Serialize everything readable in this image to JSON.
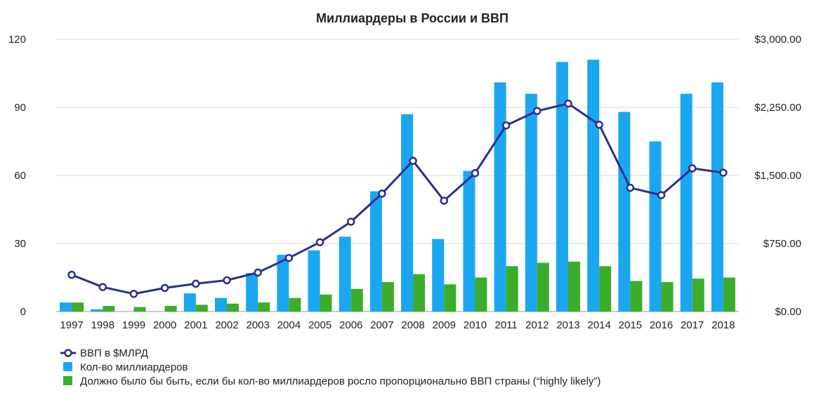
{
  "chart_data": {
    "type": "bar",
    "title": "Миллиардеры в России и ВВП",
    "categories": [
      "1997",
      "1998",
      "1999",
      "2000",
      "2001",
      "2002",
      "2003",
      "2004",
      "2005",
      "2006",
      "2007",
      "2008",
      "2009",
      "2010",
      "2011",
      "2012",
      "2013",
      "2014",
      "2015",
      "2016",
      "2017",
      "2018"
    ],
    "series": [
      {
        "name": "Кол-во миллиардеров",
        "kind": "bar",
        "axis": "left",
        "color": "#1aa7f0",
        "values": [
          4,
          1,
          0,
          0,
          8,
          6,
          17,
          25,
          27,
          33,
          53,
          87,
          32,
          62,
          101,
          96,
          110,
          111,
          88,
          75,
          96,
          101
        ]
      },
      {
        "name": "Должно было бы быть, если бы кол-во миллиардеров росло пропорционально ВВП страны (“highly likely”)",
        "kind": "bar",
        "axis": "left",
        "color": "#3cad2a",
        "values": [
          4,
          2.5,
          2,
          2.5,
          3,
          3.5,
          4,
          6,
          7.5,
          10,
          13,
          16.5,
          12,
          15,
          20,
          21.5,
          22,
          20,
          13.5,
          13,
          14.5,
          15
        ]
      },
      {
        "name": "ВВП в $МЛРД",
        "kind": "line",
        "axis": "right",
        "color": "#2b2e8f",
        "values": [
          405,
          270,
          195,
          260,
          307,
          345,
          430,
          591,
          764,
          990,
          1300,
          1661,
          1222,
          1525,
          2051,
          2210,
          2292,
          2059,
          1364,
          1283,
          1578,
          1530
        ]
      }
    ],
    "y_left": {
      "min": 0,
      "max": 120,
      "ticks": [
        "0",
        "30",
        "60",
        "90",
        "120"
      ]
    },
    "y_right": {
      "min": 0,
      "max": 3000,
      "ticks": [
        "$0.00",
        "$750.00",
        "$1,500.00",
        "$2,250.00",
        "$3,000.00"
      ]
    },
    "grid": true,
    "legend": "bottom-left"
  }
}
